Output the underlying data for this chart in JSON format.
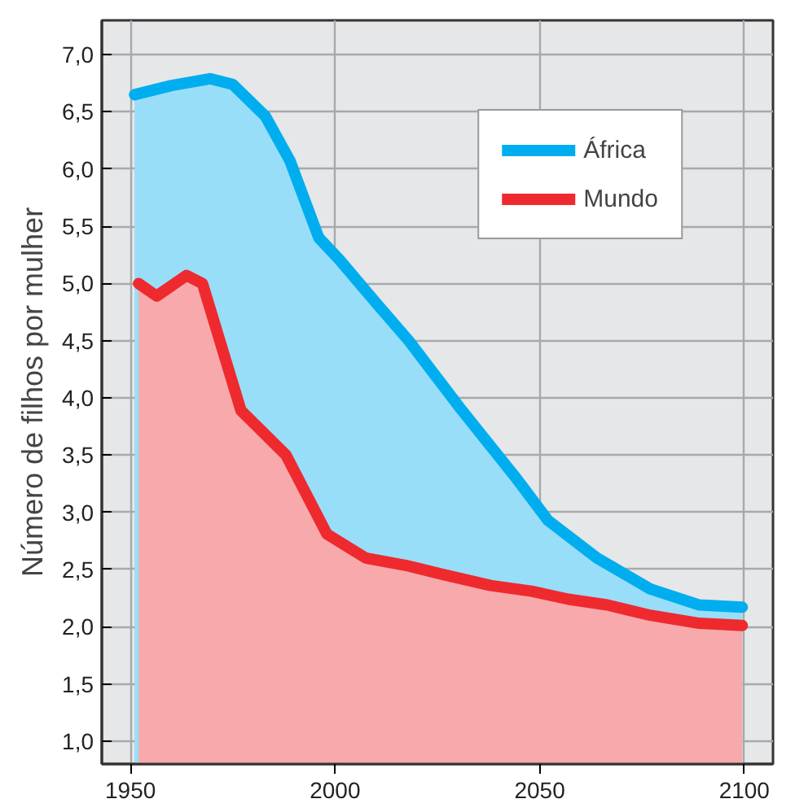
{
  "chart_data": {
    "type": "area",
    "ylabel": "Número de filhos por mulher",
    "xlim": [
      1943,
      2107
    ],
    "ylim": [
      0.8,
      7.3
    ],
    "xticks": [
      1950,
      2000,
      2050,
      2100
    ],
    "yticks": [
      {
        "value": 1.0,
        "label": "1,0"
      },
      {
        "value": 1.5,
        "label": "1,5"
      },
      {
        "value": 2.0,
        "label": "2,0"
      },
      {
        "value": 2.5,
        "label": "2,5"
      },
      {
        "value": 3.0,
        "label": "3,0"
      },
      {
        "value": 3.5,
        "label": "3,5"
      },
      {
        "value": 4.0,
        "label": "4,0"
      },
      {
        "value": 4.5,
        "label": "4,5"
      },
      {
        "value": 5.0,
        "label": "5,0"
      },
      {
        "value": 5.5,
        "label": "5,5"
      },
      {
        "value": 6.0,
        "label": "6,0"
      },
      {
        "value": 6.5,
        "label": "6,5"
      },
      {
        "value": 7.0,
        "label": "7,0"
      }
    ],
    "grid": true,
    "legend": "top right",
    "series": [
      {
        "name": "África",
        "color": "#00aeef",
        "x": [
          1951,
          1960,
          1969.5,
          1975,
          1983,
          1989,
          1996,
          2001,
          2010,
          2018,
          2031,
          2044,
          2052,
          2064,
          2077,
          2089,
          2099.5
        ],
        "values": [
          6.65,
          6.73,
          6.79,
          6.74,
          6.46,
          6.07,
          5.4,
          5.21,
          4.83,
          4.5,
          3.89,
          3.31,
          2.93,
          2.6,
          2.33,
          2.19,
          2.17
        ]
      },
      {
        "name": "Mundo",
        "color": "#ee2a2f",
        "x": [
          1952,
          1956.4,
          1963.7,
          1967.6,
          1977,
          1988,
          1998,
          2007.5,
          2018,
          2026,
          2038,
          2048,
          2057,
          2066.5,
          2077,
          2089,
          2099.5
        ],
        "values": [
          5.0,
          4.89,
          5.07,
          5.0,
          3.89,
          3.5,
          2.81,
          2.6,
          2.53,
          2.46,
          2.36,
          2.31,
          2.24,
          2.19,
          2.1,
          2.03,
          2.01
        ]
      }
    ]
  }
}
